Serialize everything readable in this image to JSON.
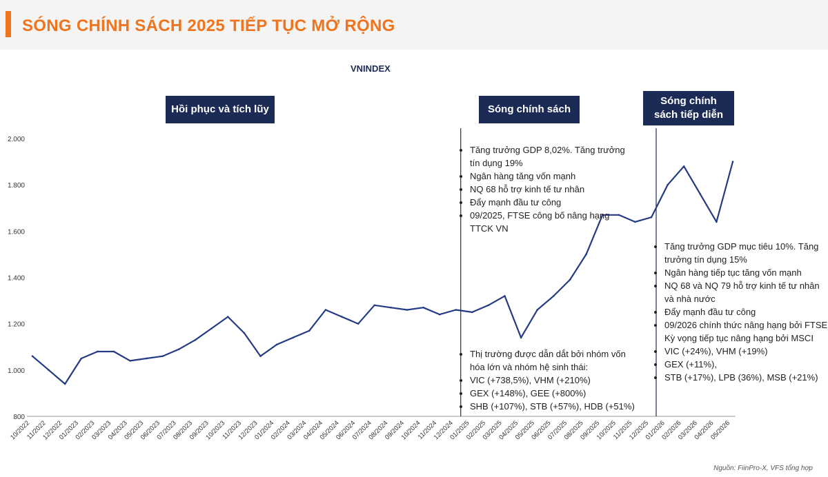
{
  "page": {
    "title": "SÓNG CHÍNH SÁCH 2025 TIẾP TỤC MỞ RỘNG",
    "source": "Nguồn: FiinPro-X, VFS tổng hợp"
  },
  "colors": {
    "accent": "#f0741d",
    "navy": "#1c2b55",
    "line": "#233a85"
  },
  "phases": [
    {
      "label": "Hồi phục và tích lũy"
    },
    {
      "label": "Sóng chính sách"
    },
    {
      "label": "Sóng chính sách tiếp diễn"
    }
  ],
  "notes": {
    "policy_top": [
      "Tăng trưởng GDP 8,02%. Tăng trưởng tín dụng 19%",
      "Ngân hàng tăng vốn mạnh",
      "NQ 68 hỗ trợ kinh tế tư nhân",
      "Đẩy mạnh đầu tư công",
      "09/2025, FTSE công bố nâng hạng TTCK VN"
    ],
    "policy_bottom": [
      "Thị trường được dẫn dắt bởi nhóm vốn hóa lớn và nhóm hệ sinh thái:",
      " VIC (+738,5%), VHM (+210%)",
      "GEX (+148%), GEE (+800%)",
      "SHB (+107%), STB (+57%), HDB (+51%)"
    ],
    "continued": [
      "Tăng trưởng GDP mục tiêu 10%. Tăng trưởng tín dụng 15%",
      "Ngân hàng tiếp tục tăng vốn mạnh",
      "NQ 68 và NQ 79 hỗ trợ kinh tế  tư nhân và nhà nước",
      "Đẩy mạnh đầu tư công",
      "09/2026 chính thức nâng hạng bởi FTSE. Kỳ vọng tiếp tục nâng hạng bởi MSCI",
      "VIC (+24%), VHM (+19%)",
      "GEX (+11%),",
      "STB (+17%), LPB (36%), MSB (+21%)"
    ]
  },
  "chart_data": {
    "type": "line",
    "title": "VNINDEX",
    "xlabel": "",
    "ylabel": "",
    "ylim": [
      800,
      2000
    ],
    "yticks": [
      "800",
      "1.000",
      "1.200",
      "1.400",
      "1.600",
      "1.800",
      "2.000"
    ],
    "ytick_values": [
      800,
      1000,
      1200,
      1400,
      1600,
      1800,
      2000
    ],
    "grid": false,
    "legend": "none",
    "categories": [
      "10/2022",
      "11/2022",
      "12/2022",
      "01/2023",
      "02/2023",
      "03/2023",
      "04/2023",
      "05/2023",
      "06/2023",
      "07/2023",
      "08/2023",
      "09/2023",
      "10/2023",
      "11/2023",
      "12/2023",
      "01/2024",
      "02/2024",
      "03/2024",
      "04/2024",
      "05/2024",
      "06/2024",
      "07/2024",
      "08/2024",
      "09/2024",
      "10/2024",
      "11/2024",
      "12/2024",
      "01/2025",
      "02/2025",
      "03/2025",
      "04/2025",
      "05/2025",
      "06/2025",
      "07/2025",
      "08/2025",
      "09/2025",
      "10/2025",
      "11/2025",
      "12/2025",
      "01/2026",
      "02/2026",
      "03/2026",
      "04/2026",
      "05/2026"
    ],
    "dividers": [
      "12/2024",
      "12/2025"
    ],
    "series": [
      {
        "values": [
          1060,
          1000,
          940,
          1050,
          1080,
          1080,
          1040,
          1050,
          1060,
          1090,
          1130,
          1180,
          1230,
          1160,
          1060,
          1110,
          1140,
          1170,
          1260,
          1230,
          1200,
          1280,
          1270,
          1260,
          1270,
          1240,
          1260,
          1250,
          1280,
          1320,
          1140,
          1260,
          1320,
          1390,
          1500,
          1670,
          1670,
          1640,
          1660,
          1800,
          1880,
          1760,
          1640,
          1900
        ]
      }
    ]
  }
}
